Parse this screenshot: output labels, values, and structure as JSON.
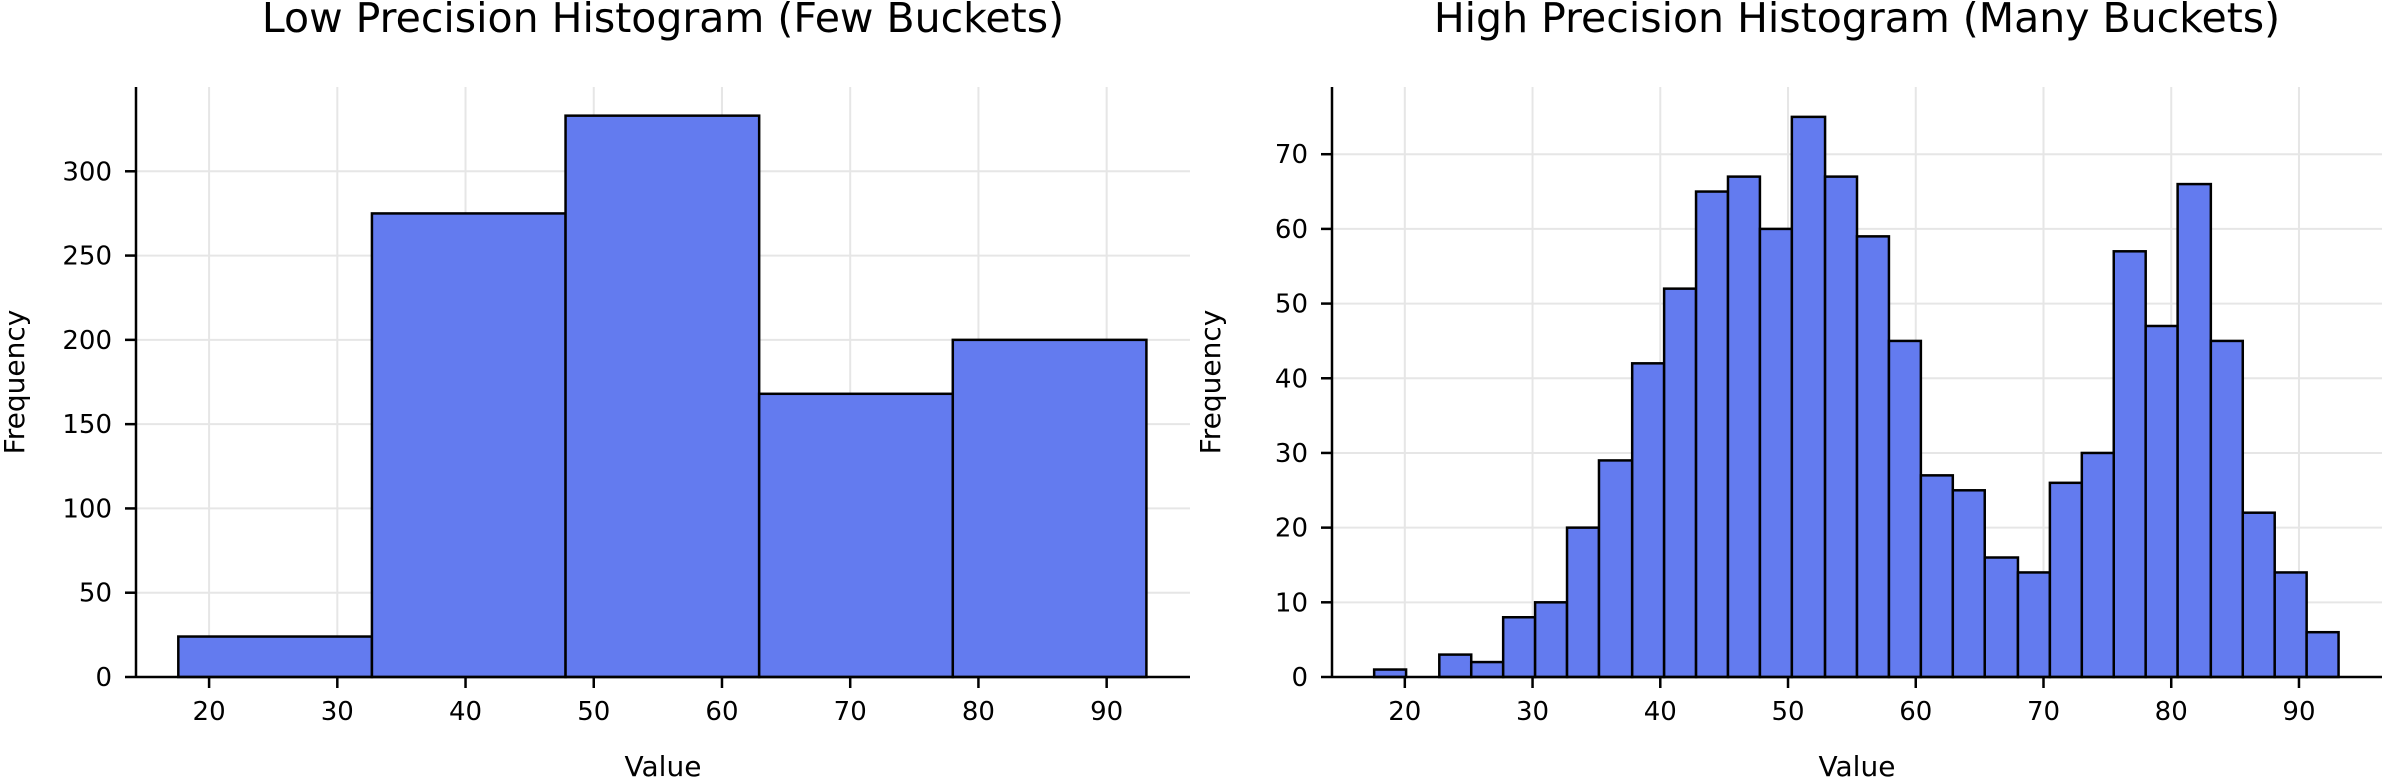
{
  "colors": {
    "bar_fill": "#637bef",
    "bar_edge": "#000000",
    "grid": "#e6e6e6"
  },
  "chart_data": [
    {
      "type": "bar",
      "title": "Low Precision Histogram (Few Buckets)",
      "xlabel": "Value",
      "ylabel": "Frequency",
      "xlim": [
        14.3,
        96.5
      ],
      "ylim": [
        0,
        350
      ],
      "xticks": [
        20,
        30,
        40,
        50,
        60,
        70,
        80,
        90
      ],
      "yticks": [
        0,
        50,
        100,
        150,
        200,
        250,
        300
      ],
      "grid": true,
      "bins": [
        {
          "x0": 17.6,
          "x1": 32.7,
          "value": 24
        },
        {
          "x0": 32.7,
          "x1": 47.8,
          "value": 275
        },
        {
          "x0": 47.8,
          "x1": 62.9,
          "value": 333
        },
        {
          "x0": 62.9,
          "x1": 78.0,
          "value": 168
        },
        {
          "x0": 78.0,
          "x1": 93.1,
          "value": 200
        }
      ]
    },
    {
      "type": "bar",
      "title": "High Precision Histogram (Many Buckets)",
      "xlabel": "Value",
      "ylabel": "Frequency",
      "xlim": [
        14.3,
        96.5
      ],
      "ylim": [
        0,
        79
      ],
      "xticks": [
        20,
        30,
        40,
        50,
        60,
        70,
        80,
        90
      ],
      "yticks": [
        0,
        10,
        20,
        30,
        40,
        50,
        60,
        70
      ],
      "grid": true,
      "bins": [
        {
          "x0": 17.6,
          "x1": 20.1,
          "value": 1
        },
        {
          "x0": 20.1,
          "x1": 22.7,
          "value": 0
        },
        {
          "x0": 22.7,
          "x1": 25.2,
          "value": 3
        },
        {
          "x0": 25.2,
          "x1": 27.7,
          "value": 2
        },
        {
          "x0": 27.7,
          "x1": 30.2,
          "value": 8
        },
        {
          "x0": 30.2,
          "x1": 32.7,
          "value": 10
        },
        {
          "x0": 32.7,
          "x1": 35.2,
          "value": 20
        },
        {
          "x0": 35.2,
          "x1": 37.8,
          "value": 29
        },
        {
          "x0": 37.8,
          "x1": 40.3,
          "value": 42
        },
        {
          "x0": 40.3,
          "x1": 42.8,
          "value": 52
        },
        {
          "x0": 42.8,
          "x1": 45.3,
          "value": 65
        },
        {
          "x0": 45.3,
          "x1": 47.8,
          "value": 67
        },
        {
          "x0": 47.8,
          "x1": 50.3,
          "value": 60
        },
        {
          "x0": 50.3,
          "x1": 52.9,
          "value": 75
        },
        {
          "x0": 52.9,
          "x1": 55.4,
          "value": 67
        },
        {
          "x0": 55.4,
          "x1": 57.9,
          "value": 59
        },
        {
          "x0": 57.9,
          "x1": 60.4,
          "value": 45
        },
        {
          "x0": 60.4,
          "x1": 62.9,
          "value": 27
        },
        {
          "x0": 62.9,
          "x1": 65.4,
          "value": 25
        },
        {
          "x0": 65.4,
          "x1": 68.0,
          "value": 16
        },
        {
          "x0": 68.0,
          "x1": 70.5,
          "value": 14
        },
        {
          "x0": 70.5,
          "x1": 73.0,
          "value": 26
        },
        {
          "x0": 73.0,
          "x1": 75.5,
          "value": 30
        },
        {
          "x0": 75.5,
          "x1": 78.0,
          "value": 57
        },
        {
          "x0": 78.0,
          "x1": 80.5,
          "value": 47
        },
        {
          "x0": 80.5,
          "x1": 83.1,
          "value": 66
        },
        {
          "x0": 83.1,
          "x1": 85.6,
          "value": 45
        },
        {
          "x0": 85.6,
          "x1": 88.1,
          "value": 22
        },
        {
          "x0": 88.1,
          "x1": 90.6,
          "value": 14
        },
        {
          "x0": 90.6,
          "x1": 93.1,
          "value": 6
        }
      ]
    }
  ]
}
